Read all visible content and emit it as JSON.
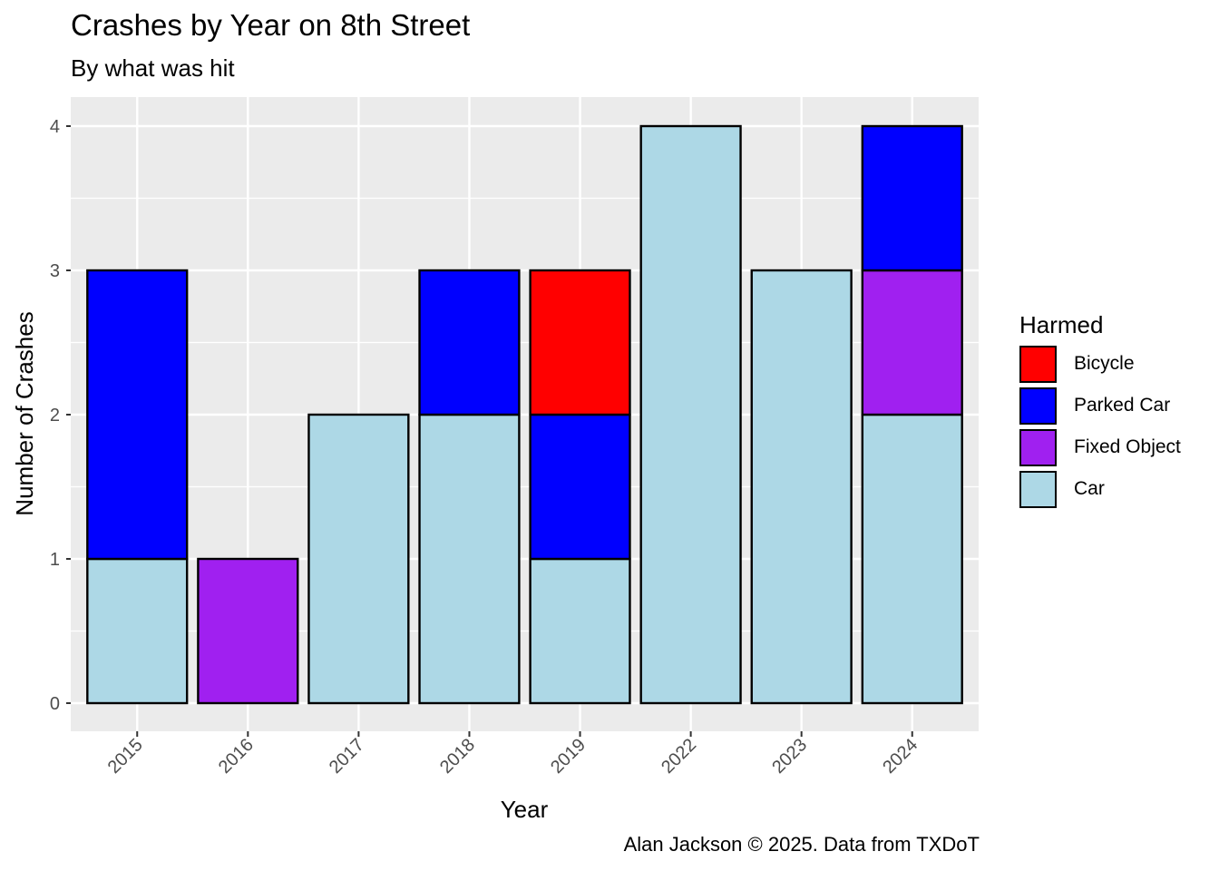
{
  "chart_data": {
    "type": "bar",
    "stacked": true,
    "title": "Crashes by Year on 8th Street",
    "subtitle": "By what was hit",
    "caption": "Alan Jackson © 2025. Data from TXDoT",
    "xlabel": "Year",
    "ylabel": "Number of Crashes",
    "categories": [
      "2015",
      "2016",
      "2017",
      "2018",
      "2019",
      "2022",
      "2023",
      "2024"
    ],
    "ylim": [
      0,
      4
    ],
    "yticks": [
      "0",
      "1",
      "2",
      "3",
      "4"
    ],
    "grid": true,
    "legend_title": "Harmed",
    "legend_position": "right",
    "series": [
      {
        "name": "Car",
        "color": "#ADD8E6",
        "values": [
          1,
          0,
          2,
          2,
          1,
          4,
          3,
          2
        ]
      },
      {
        "name": "Fixed Object",
        "color": "#A020F0",
        "values": [
          0,
          1,
          0,
          0,
          0,
          0,
          0,
          1
        ]
      },
      {
        "name": "Parked Car",
        "color": "#0000FF",
        "values": [
          2,
          0,
          0,
          1,
          1,
          0,
          0,
          1
        ]
      },
      {
        "name": "Bicycle",
        "color": "#FF0000",
        "values": [
          0,
          0,
          0,
          0,
          1,
          0,
          0,
          0
        ]
      }
    ],
    "legend_order": [
      "Bicycle",
      "Parked Car",
      "Fixed Object",
      "Car"
    ]
  }
}
